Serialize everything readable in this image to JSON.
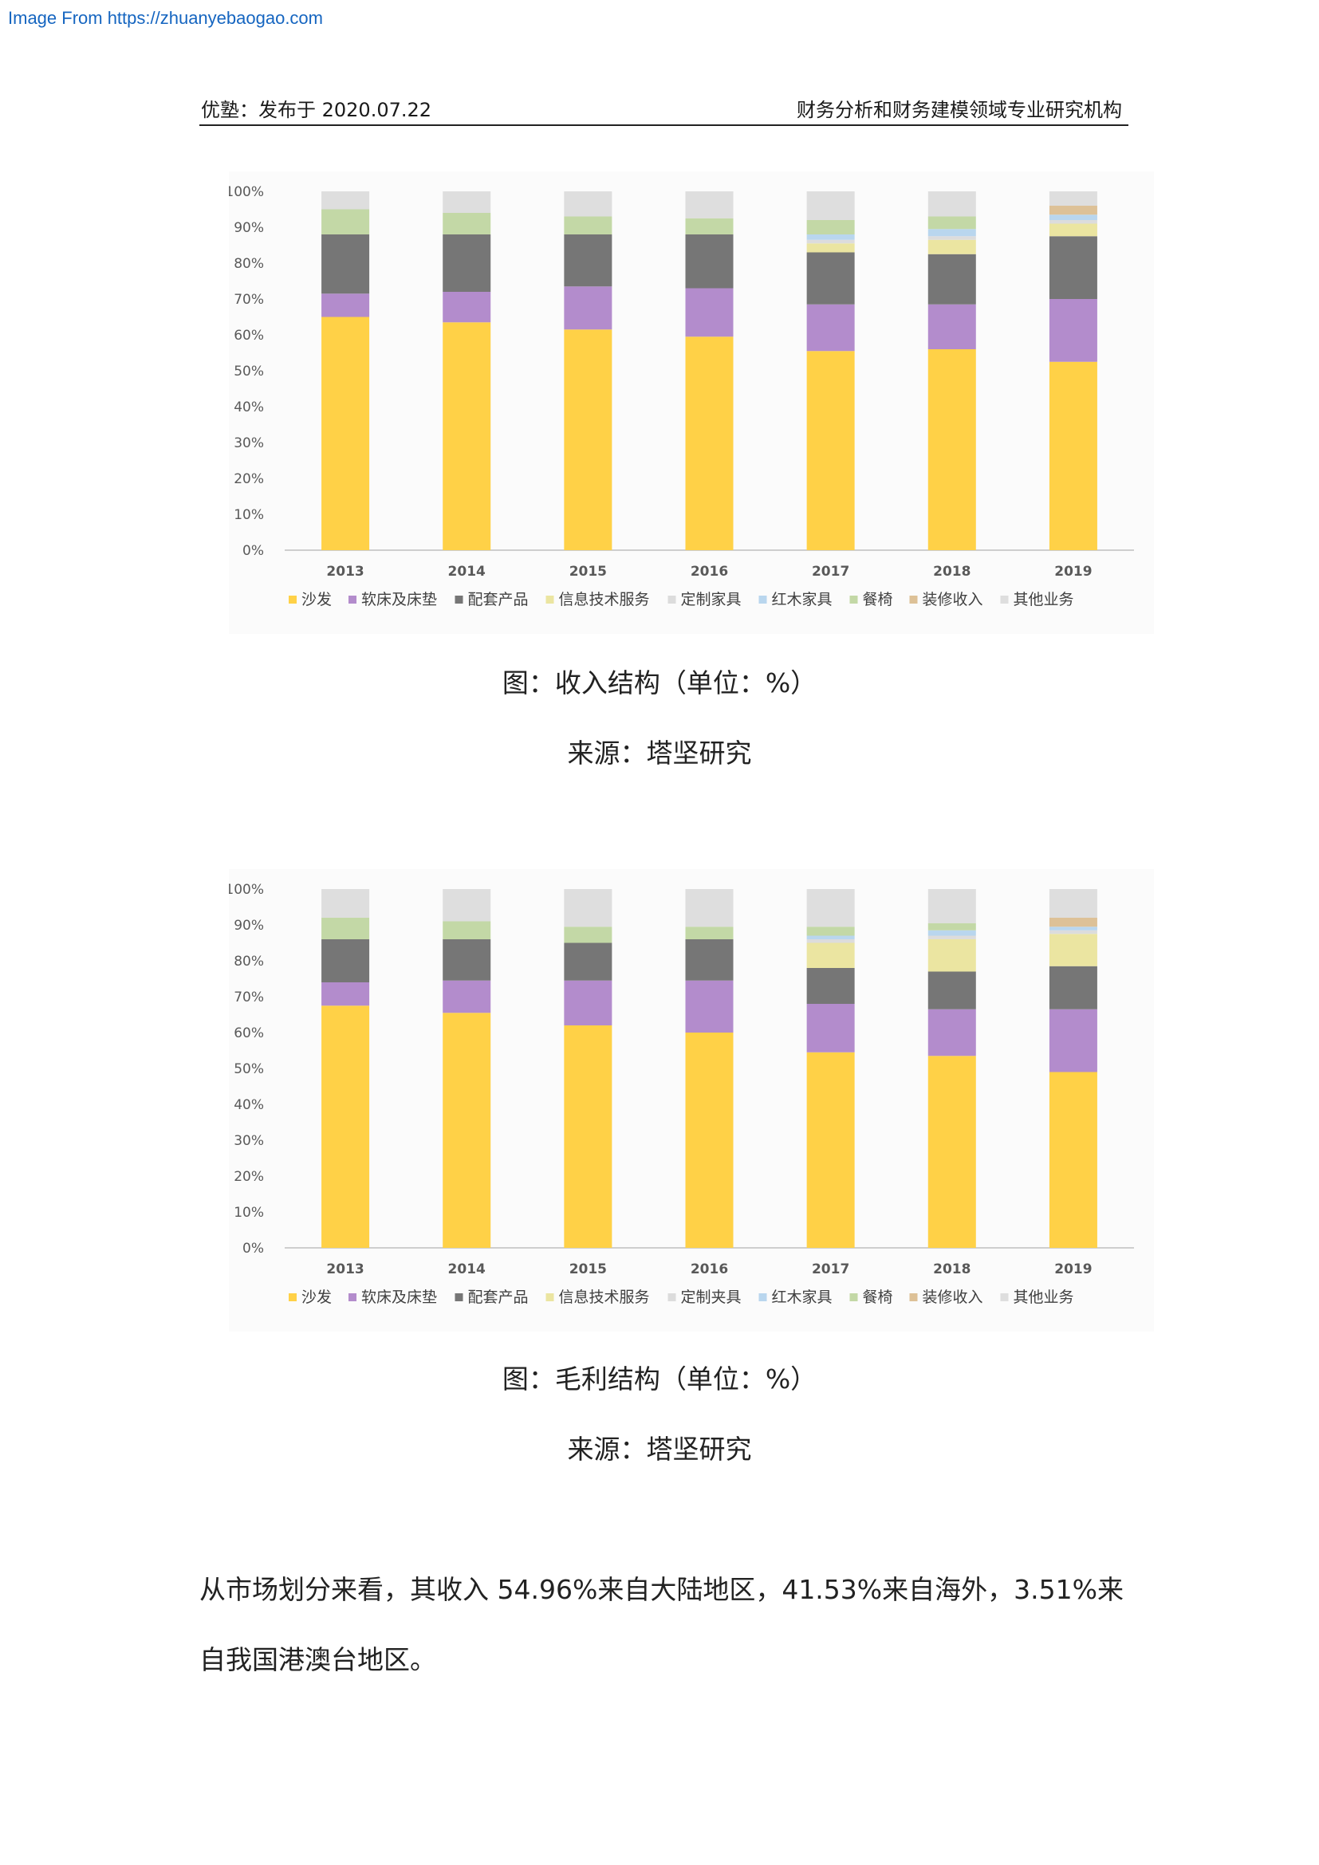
{
  "watermark": "Image From https://zhuanyebaogao.com",
  "header": {
    "left": "优塾：发布于 2020.07.22",
    "right": "财务分析和财务建模领域专业研究机构"
  },
  "figures": [
    {
      "caption": "图：收入结构（单位：%）",
      "source": "来源：塔坚研究"
    },
    {
      "caption": "图：毛利结构（单位：%）",
      "source": "来源：塔坚研究"
    }
  ],
  "paragraph": "从市场划分来看，其收入 54.96%来自大陆地区，41.53%来自海外，3.51%来自我国港澳台地区。",
  "chart_data": [
    {
      "type": "bar",
      "stacked": true,
      "title": "",
      "xlabel": "",
      "ylabel": "",
      "ylim": [
        0,
        100
      ],
      "y_ticks": [
        "0%",
        "10%",
        "20%",
        "30%",
        "40%",
        "50%",
        "60%",
        "70%",
        "80%",
        "90%",
        "100%"
      ],
      "grid": false,
      "legend_position": "bottom",
      "categories": [
        "2013",
        "2014",
        "2015",
        "2016",
        "2017",
        "2018",
        "2019"
      ],
      "series": [
        {
          "name": "沙发",
          "color": "#ffd147",
          "values": [
            65,
            63.5,
            61.5,
            59.5,
            55.5,
            56,
            52.5
          ]
        },
        {
          "name": "软床及床垫",
          "color": "#b38ccc",
          "values": [
            6.5,
            8.5,
            12,
            13.5,
            13,
            12.5,
            17.5
          ]
        },
        {
          "name": "配套产品",
          "color": "#767676",
          "values": [
            16.5,
            16,
            14.5,
            15,
            14.5,
            14,
            17.5
          ]
        },
        {
          "name": "信息技术服务",
          "color": "#ebe5a1",
          "values": [
            0,
            0,
            0,
            0,
            2.5,
            4,
            3.5
          ]
        },
        {
          "name": "定制家具",
          "color": "#dcdcdc",
          "values": [
            0,
            0,
            0,
            0,
            1,
            1,
            1
          ]
        },
        {
          "name": "红木家具",
          "color": "#b9d6ee",
          "values": [
            0,
            0,
            0,
            0,
            1.5,
            2,
            1.5
          ]
        },
        {
          "name": "餐椅",
          "color": "#c3d8a6",
          "values": [
            7,
            6,
            5,
            4.5,
            4,
            3.5,
            0
          ]
        },
        {
          "name": "装修收入",
          "color": "#ddc197",
          "values": [
            0,
            0,
            0,
            0,
            0,
            0,
            2.5
          ]
        },
        {
          "name": "其他业务",
          "color": "#dedede",
          "values": [
            5,
            6,
            7,
            7.5,
            8,
            7,
            4
          ]
        }
      ]
    },
    {
      "type": "bar",
      "stacked": true,
      "title": "",
      "xlabel": "",
      "ylabel": "",
      "ylim": [
        0,
        100
      ],
      "y_ticks": [
        "0%",
        "10%",
        "20%",
        "30%",
        "40%",
        "50%",
        "60%",
        "70%",
        "80%",
        "90%",
        "100%"
      ],
      "grid": false,
      "legend_position": "bottom",
      "categories": [
        "2013",
        "2014",
        "2015",
        "2016",
        "2017",
        "2018",
        "2019"
      ],
      "series": [
        {
          "name": "沙发",
          "color": "#ffd147",
          "values": [
            67.5,
            65.5,
            62,
            60,
            54.5,
            53.5,
            49
          ]
        },
        {
          "name": "软床及床垫",
          "color": "#b38ccc",
          "values": [
            6.5,
            9,
            12.5,
            14.5,
            13.5,
            13,
            17.5
          ]
        },
        {
          "name": "配套产品",
          "color": "#767676",
          "values": [
            12,
            11.5,
            10.5,
            11.5,
            10,
            10.5,
            12
          ]
        },
        {
          "name": "信息技术服务",
          "color": "#ebe5a1",
          "values": [
            0,
            0,
            0,
            0,
            7,
            9,
            9
          ]
        },
        {
          "name": "定制夹具",
          "color": "#dcdcdc",
          "values": [
            0,
            0,
            0,
            0,
            1,
            1,
            1
          ]
        },
        {
          "name": "红木家具",
          "color": "#b9d6ee",
          "values": [
            0,
            0,
            0,
            0,
            1,
            1.5,
            1
          ]
        },
        {
          "name": "餐椅",
          "color": "#c3d8a6",
          "values": [
            6,
            5,
            4.5,
            3.5,
            2.5,
            2,
            0
          ]
        },
        {
          "name": "装修收入",
          "color": "#ddc197",
          "values": [
            0,
            0,
            0,
            0,
            0,
            0,
            2.5
          ]
        },
        {
          "name": "其他业务",
          "color": "#dedede",
          "values": [
            8,
            9,
            10.5,
            10.5,
            10.5,
            9.5,
            8
          ]
        }
      ]
    }
  ]
}
